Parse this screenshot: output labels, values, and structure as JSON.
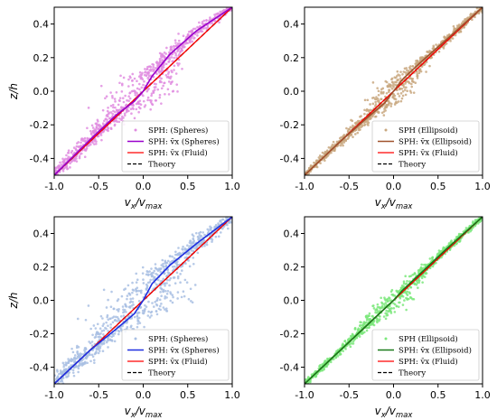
{
  "colors": {
    "theory": "#000000",
    "fluid": "#ff0000",
    "spheres_scatter_top": "#e08de0",
    "spheres_mean_top": "#9900cc",
    "ellipsoid_scatter_top": "#c9a880",
    "ellipsoid_mean_top": "#a0522d",
    "spheres_scatter_bottom": "#a9c0e3",
    "spheres_mean_bottom": "#1f2fe0",
    "ellipsoid_scatter_bottom": "#7de87d",
    "ellipsoid_mean_bottom": "#1a7a1a"
  },
  "chart_data": [
    {
      "type": "scatter",
      "panel": "top-left",
      "xlabel": "v_x/v_max",
      "ylabel": "z/h",
      "xlim": [
        -1.0,
        1.0
      ],
      "ylim": [
        -0.5,
        0.5
      ],
      "x_ticks": [
        "-1.0",
        "-0.5",
        "0.0",
        "0.5",
        "1.0"
      ],
      "y_ticks": [
        "-0.4",
        "-0.2",
        "0.0",
        "0.2",
        "0.4"
      ],
      "legend_position": "lower-right",
      "scatter_color": "#e08de0",
      "mean_color": "#9900cc",
      "scatter_spread": 0.08,
      "series": [
        {
          "name": "SPH: (Spheres)",
          "kind": "scatter"
        },
        {
          "name": "SPH: v̄x (Spheres)",
          "kind": "mean",
          "x": [
            -1.0,
            -0.6,
            -0.3,
            -0.1,
            0.0,
            0.1,
            0.3,
            0.6,
            1.0
          ],
          "y": [
            -0.5,
            -0.29,
            -0.14,
            -0.06,
            0.0,
            0.09,
            0.22,
            0.36,
            0.5
          ]
        },
        {
          "name": "SPH: v̄x (Fluid)",
          "kind": "fluid",
          "x": [
            -1.0,
            -0.5,
            0.0,
            0.5,
            1.0
          ],
          "y": [
            -0.5,
            -0.25,
            0.0,
            0.25,
            0.5
          ]
        },
        {
          "name": "Theory",
          "kind": "theory",
          "x": [
            -1.0,
            1.0
          ],
          "y": [
            -0.5,
            0.5
          ]
        }
      ]
    },
    {
      "type": "scatter",
      "panel": "top-right",
      "xlabel": "v_x/v_max",
      "ylabel": "",
      "xlim": [
        -1.0,
        1.0
      ],
      "ylim": [
        -0.5,
        0.5
      ],
      "x_ticks": [
        "-1.0",
        "-0.5",
        "0.0",
        "0.5",
        "1.0"
      ],
      "y_ticks": [
        "-0.4",
        "-0.2",
        "0.0",
        "0.2",
        "0.4"
      ],
      "legend_position": "lower-right",
      "scatter_color": "#c9a880",
      "mean_color": "#a0522d",
      "scatter_spread": 0.05,
      "series": [
        {
          "name": "SPH (Ellipsoid)",
          "kind": "scatter"
        },
        {
          "name": "SPH: v̄x (Ellipsoid)",
          "kind": "mean",
          "x": [
            -1.0,
            -0.6,
            -0.3,
            -0.1,
            0.0,
            0.1,
            0.3,
            0.6,
            1.0
          ],
          "y": [
            -0.5,
            -0.3,
            -0.16,
            -0.07,
            0.0,
            0.07,
            0.17,
            0.31,
            0.5
          ]
        },
        {
          "name": "SPH: v̄x (Fluid)",
          "kind": "fluid",
          "x": [
            -1.0,
            -0.5,
            0.0,
            0.5,
            1.0
          ],
          "y": [
            -0.5,
            -0.25,
            0.0,
            0.25,
            0.5
          ]
        },
        {
          "name": "Theory",
          "kind": "theory",
          "x": [
            -1.0,
            1.0
          ],
          "y": [
            -0.5,
            0.5
          ]
        }
      ]
    },
    {
      "type": "scatter",
      "panel": "bottom-left",
      "xlabel": "v_x/v_max",
      "ylabel": "z/h",
      "xlim": [
        -1.0,
        1.0
      ],
      "ylim": [
        -0.5,
        0.5
      ],
      "x_ticks": [
        "-1.0",
        "-0.5",
        "0.0",
        "0.5",
        "1.0"
      ],
      "y_ticks": [
        "-0.4",
        "-0.2",
        "0.0",
        "0.2",
        "0.4"
      ],
      "legend_position": "lower-right",
      "scatter_color": "#a9c0e3",
      "mean_color": "#1f2fe0",
      "scatter_spread": 0.12,
      "series": [
        {
          "name": "SPH: (Spheres)",
          "kind": "scatter"
        },
        {
          "name": "SPH: v̄x (Spheres)",
          "kind": "mean",
          "x": [
            -1.0,
            -0.6,
            -0.3,
            -0.1,
            0.0,
            0.1,
            0.3,
            0.6,
            1.0
          ],
          "y": [
            -0.5,
            -0.3,
            -0.17,
            -0.08,
            0.0,
            0.1,
            0.21,
            0.34,
            0.5
          ]
        },
        {
          "name": "SPH: v̄x (Fluid)",
          "kind": "fluid",
          "x": [
            -1.0,
            -0.5,
            0.0,
            0.5,
            1.0
          ],
          "y": [
            -0.5,
            -0.25,
            0.0,
            0.25,
            0.5
          ]
        },
        {
          "name": "Theory",
          "kind": "theory",
          "x": [
            -1.0,
            1.0
          ],
          "y": [
            -0.5,
            0.5
          ]
        }
      ]
    },
    {
      "type": "scatter",
      "panel": "bottom-right",
      "xlabel": "v_x/v_max",
      "ylabel": "",
      "xlim": [
        -1.0,
        1.0
      ],
      "ylim": [
        -0.5,
        0.5
      ],
      "x_ticks": [
        "-1.0",
        "-0.5",
        "0.0",
        "0.5",
        "1.0"
      ],
      "y_ticks": [
        "-0.4",
        "-0.2",
        "0.0",
        "0.2",
        "0.4"
      ],
      "legend_position": "lower-right",
      "scatter_color": "#7de87d",
      "mean_color": "#1a7a1a",
      "scatter_spread": 0.04,
      "series": [
        {
          "name": "SPH (Ellipsoid)",
          "kind": "scatter"
        },
        {
          "name": "SPH: v̄x (Ellipsoid)",
          "kind": "mean",
          "x": [
            -1.0,
            -0.6,
            -0.3,
            -0.1,
            0.0,
            0.1,
            0.3,
            0.6,
            1.0
          ],
          "y": [
            -0.5,
            -0.3,
            -0.15,
            -0.05,
            0.0,
            0.06,
            0.16,
            0.31,
            0.5
          ]
        },
        {
          "name": "SPH: v̄x (Fluid)",
          "kind": "fluid",
          "x": [
            -1.0,
            -0.5,
            0.0,
            0.5,
            1.0
          ],
          "y": [
            -0.5,
            -0.25,
            0.0,
            0.25,
            0.5
          ]
        },
        {
          "name": "Theory",
          "kind": "theory",
          "x": [
            -1.0,
            1.0
          ],
          "y": [
            -0.5,
            0.5
          ]
        }
      ]
    }
  ]
}
